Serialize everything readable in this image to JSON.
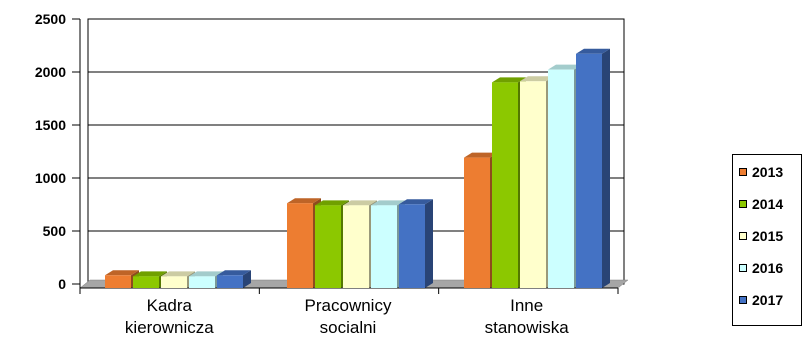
{
  "chart_data": {
    "type": "bar",
    "categories": [
      [
        "Kadra",
        "kierownicza"
      ],
      [
        "Pracownicy",
        "socialni"
      ],
      [
        "Inne",
        "stanowiska"
      ]
    ],
    "series": [
      {
        "name": "2013",
        "color": "#ED7D31",
        "values": [
          120,
          800,
          1230
        ]
      },
      {
        "name": "2014",
        "color": "#8CC800",
        "values": [
          110,
          780,
          1940
        ]
      },
      {
        "name": "2015",
        "color": "#FFFFCC",
        "values": [
          110,
          780,
          1950
        ]
      },
      {
        "name": "2016",
        "color": "#CCFFFF",
        "values": [
          110,
          780,
          2060
        ]
      },
      {
        "name": "2017",
        "color": "#4472C4",
        "values": [
          120,
          790,
          2210
        ]
      }
    ],
    "yticks": [
      "0",
      "500",
      "1000",
      "1500",
      "2000",
      "2500"
    ],
    "ylim": [
      0,
      2500
    ],
    "grid": true,
    "legend_position": "right"
  }
}
